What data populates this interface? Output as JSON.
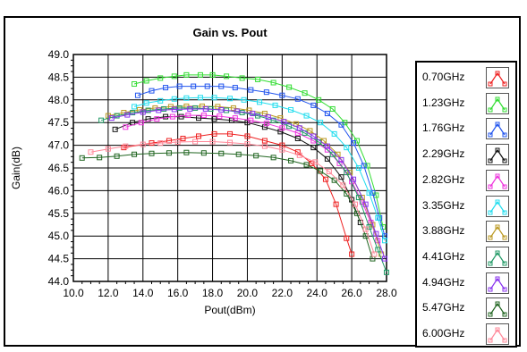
{
  "chart_data": {
    "type": "line",
    "title": "Gain vs. Pout",
    "xlabel": "Pout(dBm)",
    "ylabel": "Gain(dB)",
    "xlim": [
      10.0,
      28.0
    ],
    "ylim": [
      44.0,
      49.0
    ],
    "x_ticks": [
      "10.0",
      "12.0",
      "14.0",
      "16.0",
      "18.0",
      "20.0",
      "22.0",
      "24.0",
      "26.0",
      "28.0"
    ],
    "y_ticks": [
      "44.0",
      "44.5",
      "45.0",
      "45.5",
      "46.0",
      "46.5",
      "47.0",
      "47.5",
      "48.0",
      "48.5",
      "49.0"
    ],
    "grid": true,
    "legend_position": "right",
    "series": [
      {
        "name": "0.70GHz",
        "color": "#ee2222",
        "x": [
          12.9,
          14.5,
          15.5,
          16.3,
          17.2,
          18.1,
          19.0,
          20.0,
          21.0,
          22.0,
          22.9,
          23.7,
          24.5,
          25.1,
          25.7,
          26.0
        ],
        "y": [
          46.95,
          47.05,
          47.1,
          47.15,
          47.2,
          47.25,
          47.25,
          47.2,
          47.1,
          47.0,
          46.85,
          46.6,
          46.25,
          45.7,
          44.95,
          44.6
        ]
      },
      {
        "name": "1.23GHz",
        "color": "#33dd33",
        "x": [
          13.5,
          14.2,
          15.0,
          15.8,
          16.5,
          17.3,
          18.0,
          18.8,
          19.7,
          20.6,
          21.5,
          22.4,
          23.3,
          24.1,
          24.9,
          25.6,
          26.3,
          26.9,
          27.4,
          27.8
        ],
        "y": [
          48.35,
          48.42,
          48.48,
          48.52,
          48.55,
          48.55,
          48.55,
          48.52,
          48.48,
          48.45,
          48.38,
          48.28,
          48.15,
          48.0,
          47.8,
          47.5,
          47.1,
          46.55,
          45.9,
          45.2
        ]
      },
      {
        "name": "1.76GHz",
        "color": "#2255ee",
        "x": [
          13.7,
          14.5,
          15.3,
          16.1,
          16.9,
          17.7,
          18.5,
          19.3,
          20.2,
          21.1,
          22.0,
          22.9,
          23.8,
          24.6,
          25.4,
          26.1,
          26.7,
          27.2,
          27.6,
          27.9
        ],
        "y": [
          48.1,
          48.2,
          48.27,
          48.3,
          48.3,
          48.3,
          48.3,
          48.27,
          48.22,
          48.17,
          48.1,
          48.02,
          47.88,
          47.7,
          47.45,
          47.05,
          46.55,
          45.95,
          45.4,
          45.0
        ]
      },
      {
        "name": "2.29GHz",
        "color": "#111111",
        "x": [
          12.4,
          13.4,
          14.3,
          15.3,
          16.2,
          17.2,
          18.1,
          19.1,
          20.0,
          21.0,
          21.9,
          22.9,
          23.8,
          24.6,
          25.4,
          26.0,
          26.5
        ],
        "y": [
          47.35,
          47.5,
          47.58,
          47.63,
          47.63,
          47.6,
          47.58,
          47.55,
          47.5,
          47.4,
          47.3,
          47.15,
          46.95,
          46.7,
          46.3,
          45.8,
          45.3
        ]
      },
      {
        "name": "2.82GHz",
        "color": "#ee33dd",
        "x": [
          13.0,
          13.9,
          14.8,
          15.7,
          16.6,
          17.5,
          18.4,
          19.3,
          20.2,
          21.1,
          22.0,
          22.9,
          23.8,
          24.6,
          25.3,
          26.0,
          26.6,
          27.1,
          27.5
        ],
        "y": [
          47.4,
          47.5,
          47.58,
          47.63,
          47.66,
          47.66,
          47.64,
          47.6,
          47.55,
          47.48,
          47.38,
          47.27,
          47.1,
          46.9,
          46.6,
          46.2,
          45.75,
          45.3,
          44.9
        ]
      },
      {
        "name": "3.35GHz",
        "color": "#22ddee",
        "x": [
          13.5,
          14.2,
          15.0,
          15.8,
          16.5,
          17.3,
          18.1,
          19.0,
          19.8,
          20.7,
          21.6,
          22.5,
          23.4,
          24.2,
          25.0,
          25.7,
          26.4,
          27.0,
          27.5,
          27.9
        ],
        "y": [
          47.85,
          47.93,
          47.98,
          48.02,
          48.04,
          48.05,
          48.05,
          48.03,
          48.0,
          47.95,
          47.88,
          47.78,
          47.65,
          47.5,
          47.25,
          46.95,
          46.5,
          45.95,
          45.4,
          44.9
        ]
      },
      {
        "name": "3.88GHz",
        "color": "#bb9922",
        "x": [
          12.0,
          12.9,
          13.8,
          14.7,
          15.6,
          16.5,
          17.4,
          18.3,
          19.2,
          20.1,
          21.0,
          21.9,
          22.8,
          23.6,
          24.4,
          25.2,
          25.9,
          26.6,
          27.2,
          27.7
        ],
        "y": [
          47.65,
          47.72,
          47.78,
          47.82,
          47.85,
          47.86,
          47.86,
          47.85,
          47.82,
          47.77,
          47.7,
          47.6,
          47.47,
          47.32,
          47.1,
          46.8,
          46.4,
          45.85,
          45.25,
          44.6
        ]
      },
      {
        "name": "4.41GHz",
        "color": "#229966",
        "x": [
          11.6,
          12.5,
          13.4,
          14.3,
          15.2,
          16.1,
          17.0,
          17.9,
          18.8,
          19.7,
          20.6,
          21.5,
          22.4,
          23.3,
          24.1,
          24.9,
          25.7,
          26.4,
          27.0,
          27.5,
          28.0
        ],
        "y": [
          47.55,
          47.65,
          47.72,
          47.77,
          47.8,
          47.82,
          47.82,
          47.8,
          47.77,
          47.72,
          47.65,
          47.55,
          47.42,
          47.27,
          47.07,
          46.8,
          46.4,
          45.85,
          45.2,
          44.7,
          44.2
        ]
      },
      {
        "name": "4.94GHz",
        "color": "#8833ee",
        "x": [
          12.2,
          13.1,
          14.0,
          14.9,
          15.8,
          16.7,
          17.6,
          18.5,
          19.4,
          20.3,
          21.2,
          22.1,
          23.0,
          23.8,
          24.6,
          25.4,
          26.1,
          26.8,
          27.4,
          27.9
        ],
        "y": [
          47.6,
          47.67,
          47.73,
          47.77,
          47.79,
          47.8,
          47.8,
          47.78,
          47.75,
          47.7,
          47.62,
          47.52,
          47.38,
          47.2,
          46.98,
          46.68,
          46.25,
          45.7,
          45.05,
          44.5
        ]
      },
      {
        "name": "5.47GHz",
        "color": "#226622",
        "x": [
          10.5,
          11.5,
          12.5,
          13.5,
          14.5,
          15.5,
          16.5,
          17.5,
          18.5,
          19.5,
          20.5,
          21.5,
          22.5,
          23.4,
          24.2,
          25.0,
          25.7,
          26.3,
          26.8,
          27.2
        ],
        "y": [
          46.72,
          46.73,
          46.76,
          46.8,
          46.82,
          46.83,
          46.84,
          46.83,
          46.82,
          46.8,
          46.77,
          46.73,
          46.66,
          46.57,
          46.43,
          46.23,
          45.93,
          45.5,
          45.0,
          44.5
        ]
      },
      {
        "name": "6.00GHz",
        "color": "#ff8899",
        "x": [
          11.0,
          12.0,
          13.0,
          14.0,
          15.0,
          16.0,
          17.0,
          18.0,
          19.0,
          20.0,
          21.0,
          22.0,
          23.0,
          23.9,
          24.7,
          25.5,
          26.2,
          26.8,
          27.3
        ],
        "y": [
          46.85,
          46.92,
          46.98,
          47.02,
          47.05,
          47.07,
          47.08,
          47.08,
          47.06,
          47.03,
          46.98,
          46.9,
          46.78,
          46.63,
          46.42,
          46.12,
          45.7,
          45.15,
          44.6
        ]
      }
    ]
  }
}
